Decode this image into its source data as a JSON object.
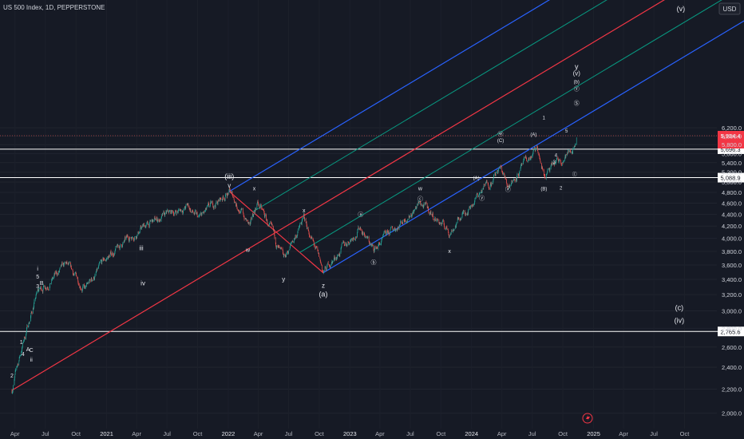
{
  "header": {
    "symbol_title": "US 500 Index, 1D, PEPPERSTONE",
    "currency": "USD"
  },
  "colors": {
    "background": "#161a25",
    "up": "#26a69a",
    "down": "#ef5350",
    "fork_red": "#f23645",
    "fork_blue": "#2962ff",
    "fork_green": "#089981",
    "hline": "#ffffff",
    "text": "#d1d4dc"
  },
  "chart_data": {
    "type": "candlestick",
    "instrument": "US 500 Index",
    "timeframe": "1D",
    "x_ticks": [
      "Apr",
      "Jul",
      "Oct",
      "2021",
      "Apr",
      "Jul",
      "Oct",
      "2022",
      "Apr",
      "Jul",
      "Oct",
      "2023",
      "Apr",
      "Jul",
      "Oct",
      "2024",
      "Apr",
      "Jul",
      "Oct",
      "2025",
      "Apr",
      "Jul",
      "Oct"
    ],
    "y_ticks": [
      "6,200.0",
      "6,000.0",
      "5,800.0",
      "5,600.0",
      "5,400.0",
      "5,200.0",
      "5,000.0",
      "4,800.0",
      "4,600.0",
      "4,400.0",
      "4,200.0",
      "4,000.0",
      "3,800.0",
      "3,600.0",
      "3,400.0",
      "3,200.0",
      "3,000.0",
      "2,800.0",
      "2,600.0",
      "2,400.0",
      "2,200.0",
      "2,000.0"
    ],
    "ylim": [
      1900,
      6480
    ],
    "y_scale": "log",
    "price_anchors": [
      {
        "date": "2020-03-23",
        "price": 2190
      },
      {
        "date": "2020-06-08",
        "price": 3230
      },
      {
        "date": "2020-09-02",
        "price": 3580
      },
      {
        "date": "2020-10-30",
        "price": 3270
      },
      {
        "date": "2021-01-04",
        "price": 3700
      },
      {
        "date": "2021-04-15",
        "price": 4170
      },
      {
        "date": "2021-09-02",
        "price": 4540
      },
      {
        "date": "2021-10-04",
        "price": 4300
      },
      {
        "date": "2022-01-04",
        "price": 4818
      },
      {
        "date": "2022-03-08",
        "price": 4170
      },
      {
        "date": "2022-03-29",
        "price": 4630
      },
      {
        "date": "2022-06-16",
        "price": 3640
      },
      {
        "date": "2022-08-16",
        "price": 4325
      },
      {
        "date": "2022-10-13",
        "price": 3490
      },
      {
        "date": "2023-02-02",
        "price": 4190
      },
      {
        "date": "2023-03-13",
        "price": 3810
      },
      {
        "date": "2023-07-31",
        "price": 4600
      },
      {
        "date": "2023-10-27",
        "price": 4100
      },
      {
        "date": "2024-03-28",
        "price": 5260
      },
      {
        "date": "2024-04-19",
        "price": 4950
      },
      {
        "date": "2024-07-16",
        "price": 5670
      },
      {
        "date": "2024-08-05",
        "price": 5120
      },
      {
        "date": "2024-10-31",
        "price": 5700
      },
      {
        "date": "2024-11-11",
        "price": 6020
      }
    ],
    "horizontal_levels": [
      {
        "price": 5696.3,
        "label": "5,696.3"
      },
      {
        "price": 5088.9,
        "label": "5,088.9"
      },
      {
        "price": 2765.6,
        "label": "2,765.6"
      }
    ],
    "current_price_label": "5,934.4",
    "pitchfork": {
      "pivots": [
        {
          "date": "2020-03-23",
          "price": 2190
        },
        {
          "date": "2022-01-04",
          "price": 4818
        },
        {
          "date": "2022-10-13",
          "price": 3490
        }
      ]
    },
    "wave_labels": [
      "(iii)",
      "v",
      "iii",
      "iv",
      "i",
      "5",
      "3",
      "B",
      "1",
      "4",
      "A",
      "C",
      "ii",
      "2",
      "x",
      "w",
      "x",
      "y",
      "z",
      "(a)",
      "w",
      "ⓒ",
      "ⓐ",
      "ⓑ",
      "x",
      "(A)",
      "ⓦ",
      "(C)",
      "ⓧ",
      "ⓨ",
      "(A)",
      "(B)",
      "1",
      "3",
      "4",
      "2",
      "5",
      "ⓒ",
      "ⓨ",
      "Ⓢ",
      "(b)",
      "y",
      "(v)",
      "(c)",
      "(iv)"
    ]
  }
}
